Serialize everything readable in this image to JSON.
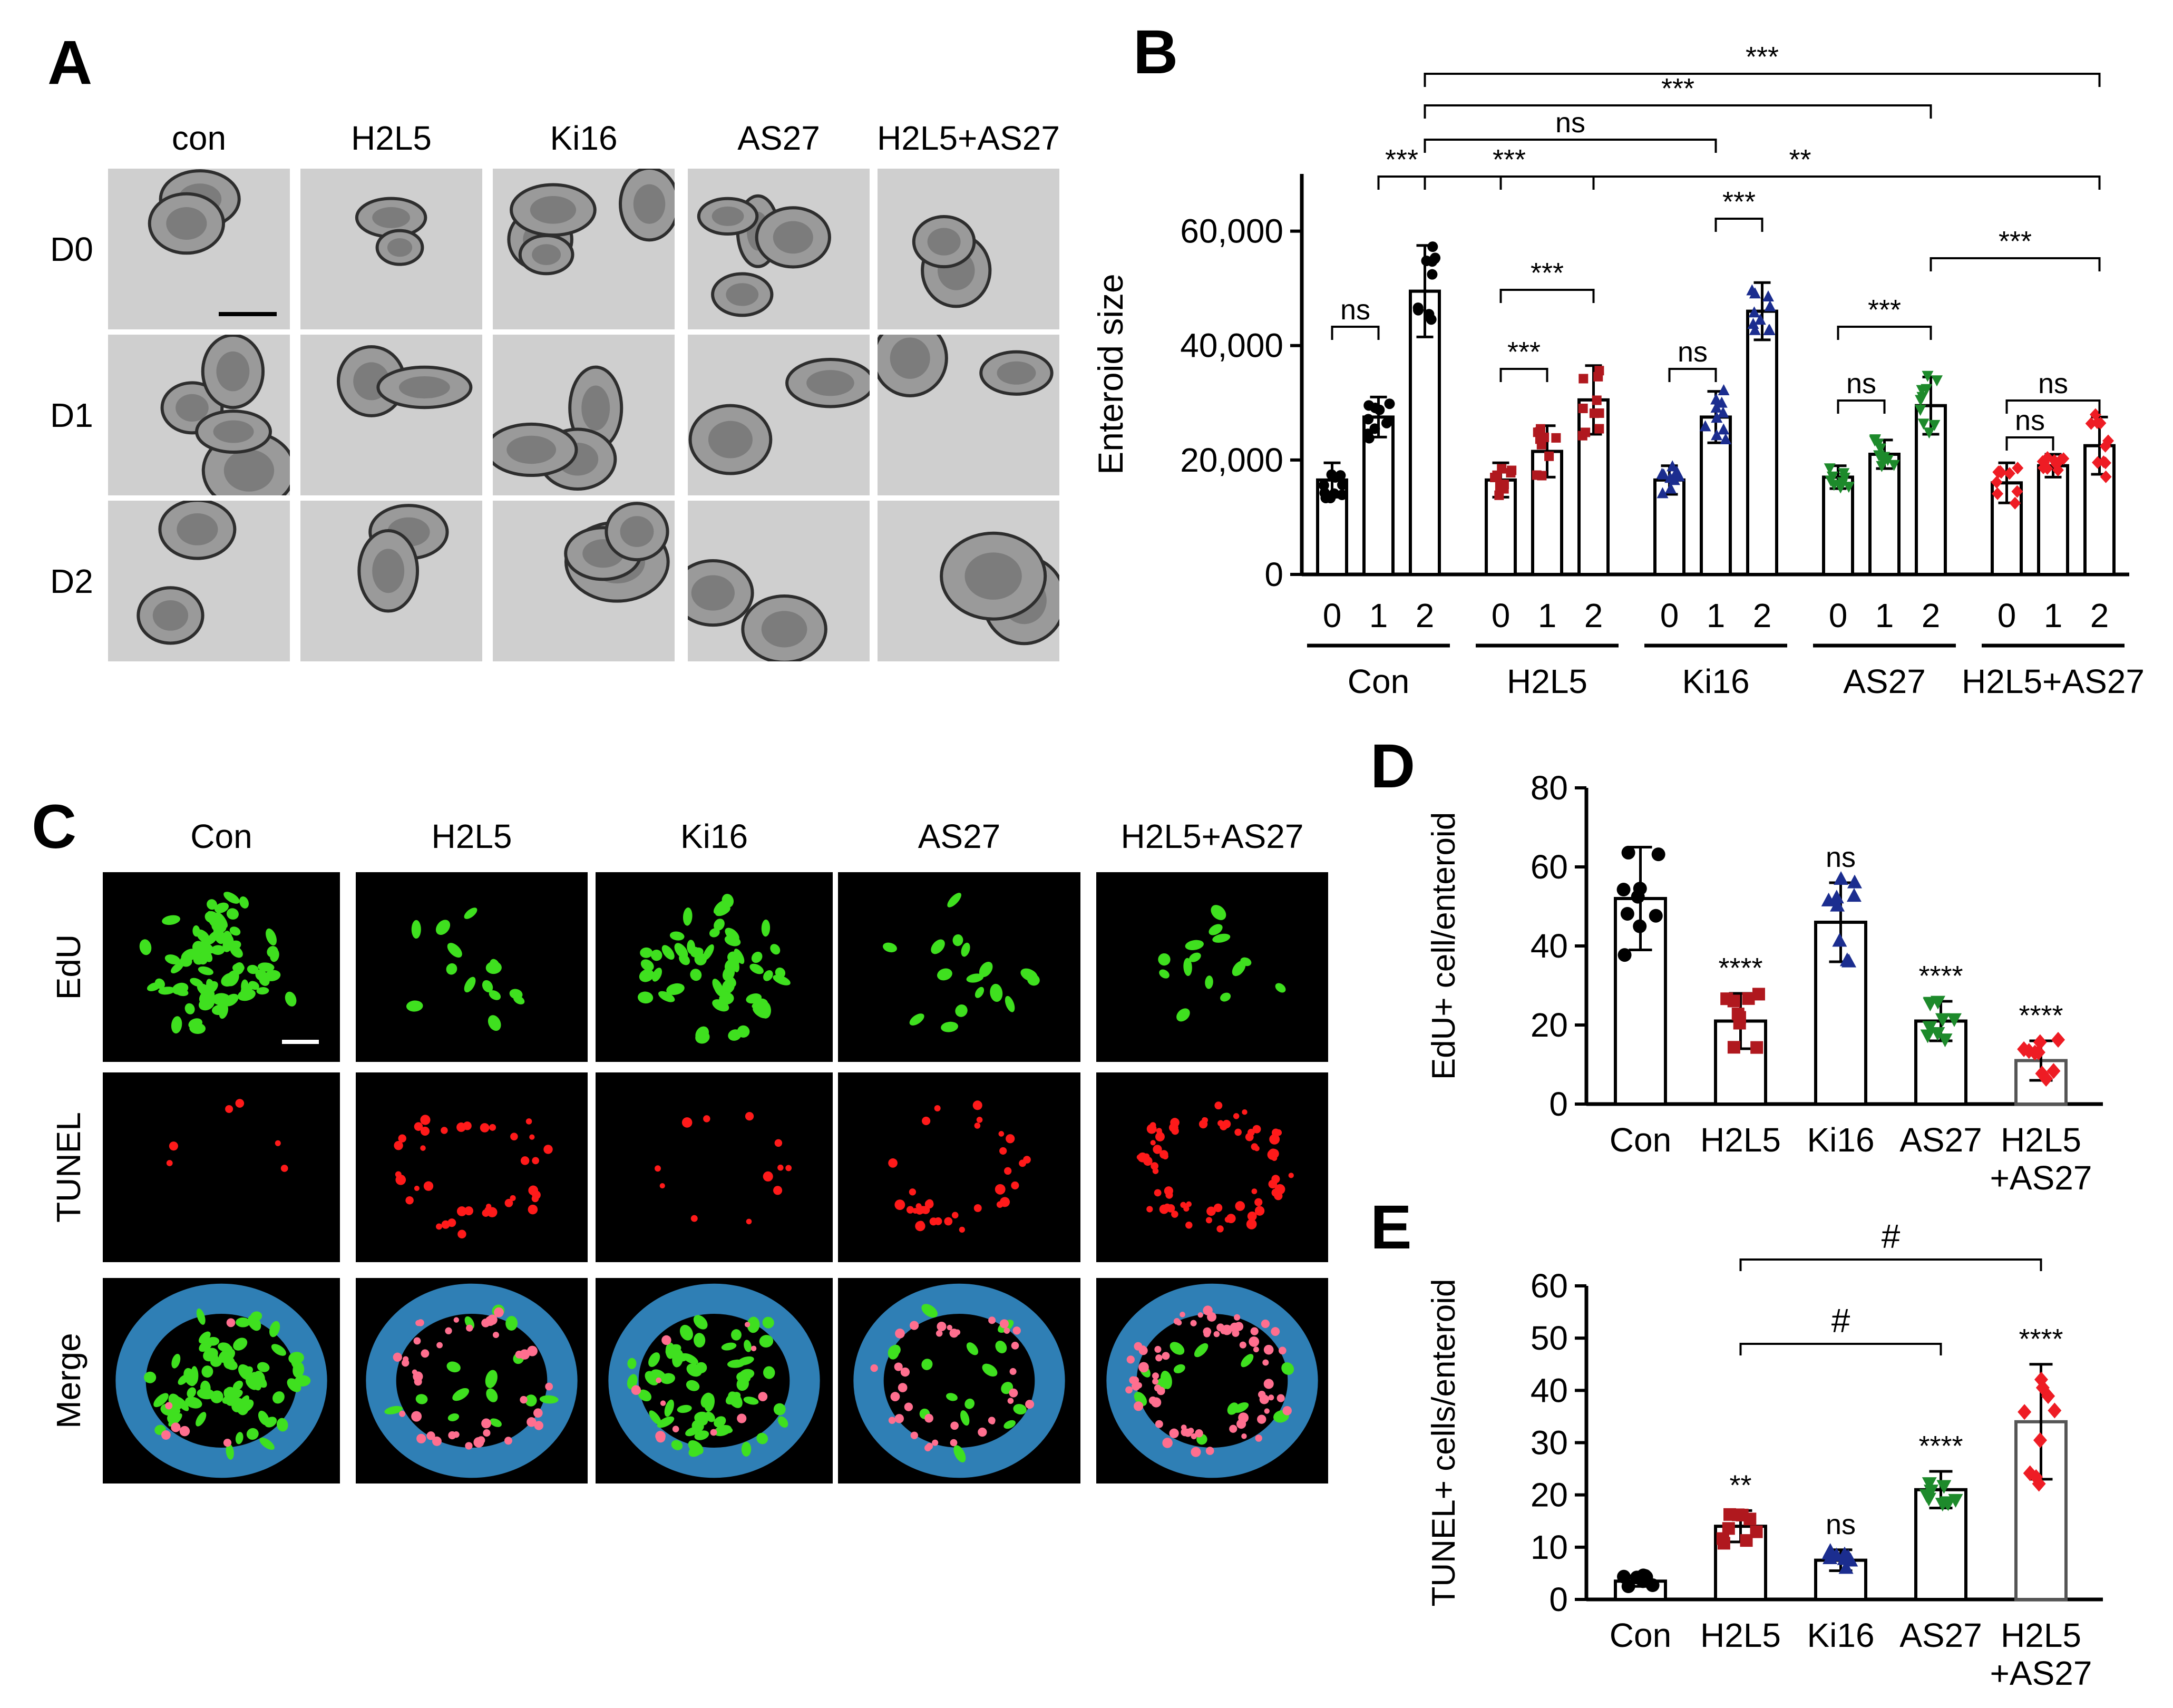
{
  "panel_a": {
    "label": "A",
    "columns": [
      "con",
      "H2L5",
      "Ki16",
      "AS27",
      "H2L5+AS27"
    ],
    "rows": [
      "D0",
      "D1",
      "D2"
    ]
  },
  "panel_c": {
    "label": "C",
    "columns": [
      "Con",
      "H2L5",
      "Ki16",
      "AS27",
      "H2L5+AS27"
    ],
    "rows": [
      "EdU",
      "TUNEL",
      "Merge"
    ]
  },
  "colors": {
    "Con": "#000000",
    "H2L5": "#b0181e",
    "Ki16": "#1b2d8f",
    "AS27": "#1d8a2b",
    "H2L5+AS27": "#ee1c24"
  },
  "chart_data": [
    {
      "panel": "B",
      "type": "bar",
      "ylabel": "Enteroid size",
      "ylim": [
        0,
        70000
      ],
      "yticks": [
        0,
        20000,
        40000,
        60000
      ],
      "ytick_labels": [
        "0",
        "20,000",
        "40,000",
        "60,000"
      ],
      "groups": [
        "Con",
        "H2L5",
        "Ki16",
        "AS27",
        "H2L5+AS27"
      ],
      "days": [
        "0",
        "1",
        "2"
      ],
      "series": [
        {
          "name": "Con",
          "values": [
            16500,
            27500,
            49500
          ],
          "sd": [
            3000,
            3500,
            8000
          ]
        },
        {
          "name": "H2L5",
          "values": [
            16500,
            21500,
            30500
          ],
          "sd": [
            3000,
            4500,
            6000
          ]
        },
        {
          "name": "Ki16",
          "values": [
            16500,
            27500,
            46000
          ],
          "sd": [
            2500,
            4500,
            5000
          ]
        },
        {
          "name": "AS27",
          "values": [
            17000,
            21000,
            29500
          ],
          "sd": [
            2000,
            2500,
            5000
          ]
        },
        {
          "name": "H2L5+AS27",
          "values": [
            16000,
            19000,
            22500
          ],
          "sd": [
            3500,
            2000,
            5000
          ]
        }
      ],
      "annotations": [
        "***",
        "***",
        "ns",
        "***",
        "**",
        "***",
        "***",
        "ns",
        "***",
        "***",
        "ns",
        "***",
        "ns",
        "***",
        "ns",
        "ns"
      ]
    },
    {
      "panel": "D",
      "type": "bar",
      "ylabel": "EdU+ cell/enteroid",
      "ylim": [
        0,
        80
      ],
      "yticks": [
        0,
        20,
        40,
        60,
        80
      ],
      "categories": [
        "Con",
        "H2L5",
        "Ki16",
        "AS27",
        "H2L5\n+AS27"
      ],
      "values": [
        52,
        21,
        46,
        21,
        11
      ],
      "sd": [
        13,
        7,
        10,
        5,
        5
      ],
      "annotations": [
        "",
        "****",
        "ns",
        "****",
        "****"
      ]
    },
    {
      "panel": "E",
      "type": "bar",
      "ylabel": "TUNEL+ cells/enteroid",
      "ylim": [
        0,
        60
      ],
      "yticks": [
        0,
        10,
        20,
        30,
        40,
        50,
        60
      ],
      "categories": [
        "Con",
        "H2L5",
        "Ki16",
        "AS27",
        "H2L5\n+AS27"
      ],
      "values": [
        3.5,
        14,
        7.5,
        21,
        34
      ],
      "sd": [
        1,
        3,
        2,
        3.5,
        11
      ],
      "annotations": [
        "",
        "**",
        "ns",
        "****",
        "****"
      ],
      "brackets": [
        "#",
        "#"
      ]
    }
  ]
}
